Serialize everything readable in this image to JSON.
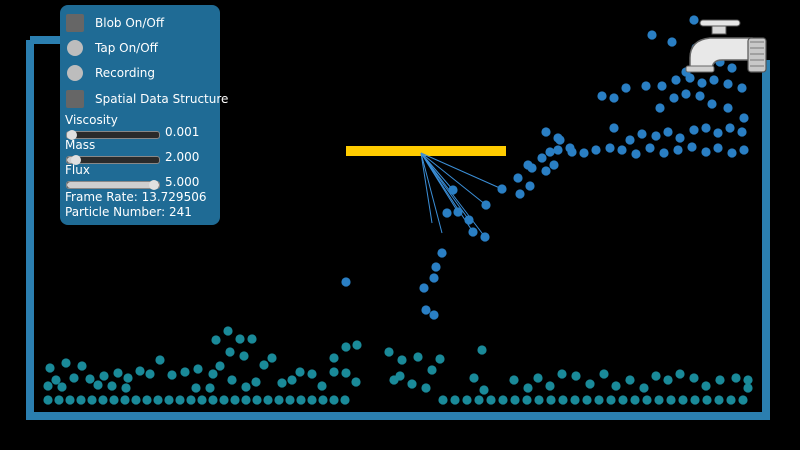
{
  "toggles": [
    {
      "label": "Blob On/Off",
      "kind": "checkbox"
    },
    {
      "label": "Tap On/Off",
      "kind": "radio"
    },
    {
      "label": "Recording",
      "kind": "radio"
    },
    {
      "label": "Spatial Data Structure",
      "kind": "checkbox"
    }
  ],
  "sliders": [
    {
      "label": "Viscosity",
      "value": "0.001",
      "level": 0.02
    },
    {
      "label": "Mass",
      "value": "2.000",
      "level": 0.1
    },
    {
      "label": "Flux",
      "value": "5.000",
      "level": 1.0
    }
  ],
  "stats": {
    "frame_rate": "Frame Rate: 13.729506",
    "particle_number": "Particle Number: 241"
  },
  "colors": {
    "background": "#000000",
    "container": "#2b7fb0",
    "panel": "#1f6b95",
    "barrier": "#ffcc00",
    "particle_water": "#1a8a99",
    "particle_flow": "#2a7fc4",
    "springs": "#3b8fd8"
  },
  "icons": {
    "tap": "faucet-icon"
  }
}
